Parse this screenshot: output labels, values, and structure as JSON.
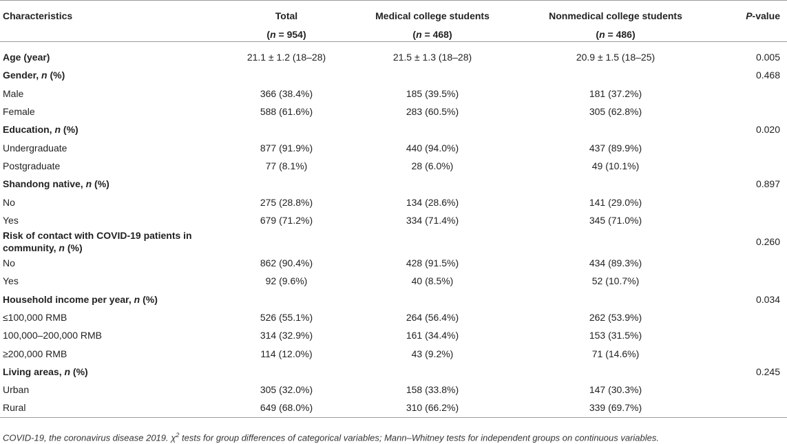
{
  "header": {
    "characteristics": "Characteristics",
    "total": {
      "label": "Total",
      "n_prefix": "(",
      "n_var": "n",
      "n_value": " = 954)"
    },
    "medical": {
      "label": "Medical college students",
      "n_prefix": "(",
      "n_var": "n",
      "n_value": " = 468)"
    },
    "nonmedical": {
      "label": "Nonmedical college students",
      "n_prefix": "(",
      "n_var": "n",
      "n_value": " = 486)"
    },
    "pvalue": {
      "p": "P",
      "suffix": "-value"
    }
  },
  "rows": [
    {
      "type": "section",
      "label": "Age (year)",
      "total": "21.1 ± 1.2 (18–28)",
      "medical": "21.5 ± 1.3 (18–28)",
      "nonmedical": "20.9 ± 1.5 (18–25)",
      "p": "0.005"
    },
    {
      "type": "section",
      "label": "Gender, ",
      "label_n": "n",
      "label_tail": " (%)",
      "total": "",
      "medical": "",
      "nonmedical": "",
      "p": "0.468"
    },
    {
      "type": "sub",
      "label": "Male",
      "total": "366 (38.4%)",
      "medical": "185 (39.5%)",
      "nonmedical": "181 (37.2%)",
      "p": ""
    },
    {
      "type": "sub",
      "label": "Female",
      "total": "588 (61.6%)",
      "medical": "283 (60.5%)",
      "nonmedical": "305 (62.8%)",
      "p": ""
    },
    {
      "type": "section",
      "label": "Education, ",
      "label_n": "n",
      "label_tail": " (%)",
      "total": "",
      "medical": "",
      "nonmedical": "",
      "p": "0.020"
    },
    {
      "type": "sub",
      "label": "Undergraduate",
      "total": "877 (91.9%)",
      "medical": "440 (94.0%)",
      "nonmedical": "437 (89.9%)",
      "p": ""
    },
    {
      "type": "sub",
      "label": "Postgraduate",
      "total": "77 (8.1%)",
      "medical": "28 (6.0%)",
      "nonmedical": "49 (10.1%)",
      "p": ""
    },
    {
      "type": "section",
      "label": "Shandong native, ",
      "label_n": "n",
      "label_tail": " (%)",
      "total": "",
      "medical": "",
      "nonmedical": "",
      "p": "0.897"
    },
    {
      "type": "sub",
      "label": "No",
      "total": "275 (28.8%)",
      "medical": "134 (28.6%)",
      "nonmedical": "141 (29.0%)",
      "p": ""
    },
    {
      "type": "sub",
      "label": "Yes",
      "total": "679 (71.2%)",
      "medical": "334 (71.4%)",
      "nonmedical": "345 (71.0%)",
      "p": ""
    },
    {
      "type": "section",
      "label": "Risk of contact with COVID-19 patients in community, ",
      "label_n": "n",
      "label_tail": " (%)",
      "total": "",
      "medical": "",
      "nonmedical": "",
      "p": "0.260"
    },
    {
      "type": "sub",
      "label": "No",
      "total": "862 (90.4%)",
      "medical": "428 (91.5%)",
      "nonmedical": "434 (89.3%)",
      "p": ""
    },
    {
      "type": "sub",
      "label": "Yes",
      "total": "92 (9.6%)",
      "medical": "40 (8.5%)",
      "nonmedical": "52 (10.7%)",
      "p": ""
    },
    {
      "type": "section",
      "label": "Household income per year, ",
      "label_n": "n",
      "label_tail": " (%)",
      "total": "",
      "medical": "",
      "nonmedical": "",
      "p": "0.034"
    },
    {
      "type": "sub",
      "label": "≤100,000 RMB",
      "total": "526 (55.1%)",
      "medical": "264 (56.4%)",
      "nonmedical": "262 (53.9%)",
      "p": ""
    },
    {
      "type": "sub",
      "label": "100,000–200,000 RMB",
      "total": "314 (32.9%)",
      "medical": "161 (34.4%)",
      "nonmedical": "153 (31.5%)",
      "p": ""
    },
    {
      "type": "sub",
      "label": "≥200,000 RMB",
      "total": "114 (12.0%)",
      "medical": "43 (9.2%)",
      "nonmedical": "71 (14.6%)",
      "p": ""
    },
    {
      "type": "section",
      "label": "Living areas, ",
      "label_n": "n",
      "label_tail": " (%)",
      "total": "",
      "medical": "",
      "nonmedical": "",
      "p": "0.245"
    },
    {
      "type": "sub",
      "label": "Urban",
      "total": "305 (32.0%)",
      "medical": "158 (33.8%)",
      "nonmedical": "147 (30.3%)",
      "p": ""
    },
    {
      "type": "sub",
      "label": "Rural",
      "total": "649 (68.0%)",
      "medical": "310 (66.2%)",
      "nonmedical": "339 (69.7%)",
      "p": ""
    }
  ],
  "footnote": {
    "part1": "COVID-19, the coronavirus disease 2019. ",
    "chi": "χ",
    "sup": "2",
    "part2": " tests for group differences of categorical variables; Mann–Whitney tests for independent groups on continuous variables."
  }
}
